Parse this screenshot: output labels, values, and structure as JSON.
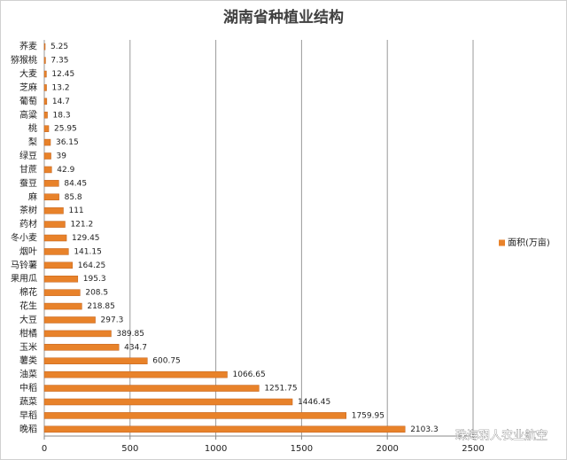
{
  "chart_data": {
    "type": "barh",
    "title": "湖南省种植业结构",
    "categories": [
      "荞麦",
      "猕猴桃",
      "大麦",
      "芝麻",
      "葡萄",
      "高粱",
      "桃",
      "梨",
      "绿豆",
      "甘蔗",
      "蚕豆",
      "麻",
      "茶树",
      "药材",
      "冬小麦",
      "烟叶",
      "马铃薯",
      "果用瓜",
      "棉花",
      "花生",
      "大豆",
      "柑橘",
      "玉米",
      "薯类",
      "油菜",
      "中稻",
      "蔬菜",
      "早稻",
      "晚稻"
    ],
    "series": [
      {
        "name": "面积(万亩)",
        "color": "#e8822a",
        "values": [
          5.25,
          7.35,
          12.45,
          13.2,
          14.7,
          18.3,
          25.95,
          36.15,
          39,
          42.9,
          84.45,
          85.8,
          111,
          121.2,
          129.45,
          141.15,
          164.25,
          195.3,
          208.5,
          218.85,
          297.3,
          389.85,
          434.7,
          600.75,
          1066.65,
          1251.75,
          1446.45,
          1759.95,
          2103.3
        ]
      }
    ],
    "xlim": [
      0,
      2500
    ],
    "xticks": [
      0,
      500,
      1000,
      1500,
      2000,
      2500
    ],
    "grid": true,
    "legend": "right",
    "watermark": "珠海羽人农业航空"
  }
}
